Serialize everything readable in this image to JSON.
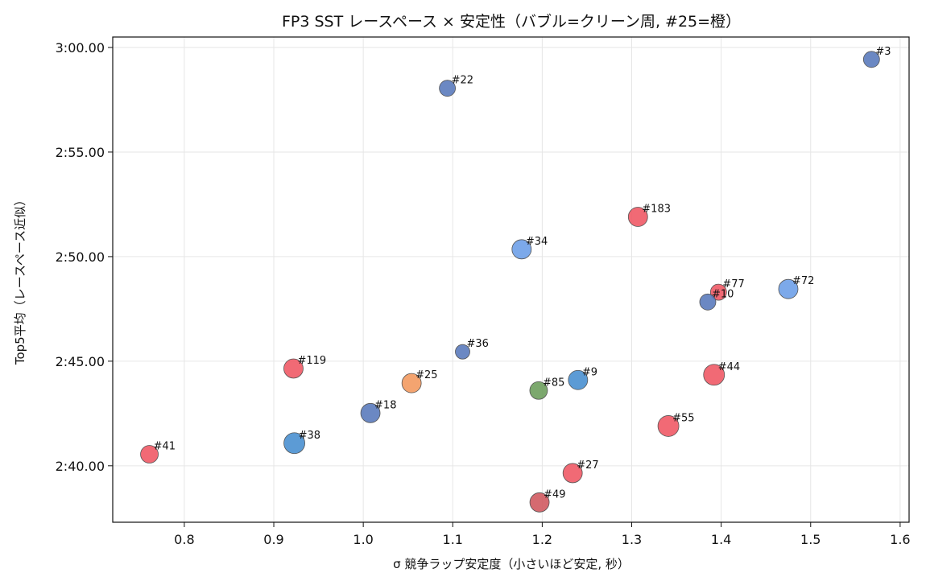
{
  "chart_data": {
    "type": "scatter",
    "title": "FP3 SST レースペース × 安定性（バブル=クリーン周, #25=橙）",
    "xlabel": "σ 競争ラップ安定度（小さいほど安定, 秒）",
    "ylabel": "Top5平均（レースペース近似）",
    "xlim": [
      0.72,
      1.61
    ],
    "ylim": [
      157.3,
      180.5
    ],
    "x_ticks": [
      0.8,
      0.9,
      1.0,
      1.1,
      1.2,
      1.3,
      1.4,
      1.5,
      1.6
    ],
    "x_tick_labels": [
      "0.8",
      "0.9",
      "1.0",
      "1.1",
      "1.2",
      "1.3",
      "1.4",
      "1.5",
      "1.6"
    ],
    "y_ticks": [
      160,
      165,
      170,
      175,
      180
    ],
    "y_tick_labels": [
      "2:40.00",
      "2:45.00",
      "2:50.00",
      "2:55.00",
      "3:00.00"
    ],
    "grid": true,
    "points": [
      {
        "label": "#3",
        "x": 1.568,
        "y": 179.43,
        "size": 10,
        "color": "#5b7bbd"
      },
      {
        "label": "#22",
        "x": 1.094,
        "y": 178.05,
        "size": 10,
        "color": "#5b7bbd"
      },
      {
        "label": "#183",
        "x": 1.307,
        "y": 171.9,
        "size": 12,
        "color": "#f05a66"
      },
      {
        "label": "#34",
        "x": 1.177,
        "y": 170.35,
        "size": 12,
        "color": "#6ea0e8"
      },
      {
        "label": "#72",
        "x": 1.475,
        "y": 168.45,
        "size": 12,
        "color": "#6ea0e8"
      },
      {
        "label": "#77",
        "x": 1.397,
        "y": 168.3,
        "size": 10,
        "color": "#f05a66"
      },
      {
        "label": "#10",
        "x": 1.385,
        "y": 167.83,
        "size": 10,
        "color": "#5b7bbd"
      },
      {
        "label": "#36",
        "x": 1.111,
        "y": 165.45,
        "size": 9,
        "color": "#5b7bbd"
      },
      {
        "label": "#119",
        "x": 0.922,
        "y": 164.65,
        "size": 12,
        "color": "#f05a66"
      },
      {
        "label": "#44",
        "x": 1.392,
        "y": 164.35,
        "size": 13,
        "color": "#f05a66"
      },
      {
        "label": "#9",
        "x": 1.24,
        "y": 164.1,
        "size": 12,
        "color": "#4a90d0"
      },
      {
        "label": "#25",
        "x": 1.054,
        "y": 163.95,
        "size": 12,
        "color": "#f39a60"
      },
      {
        "label": "#85",
        "x": 1.196,
        "y": 163.6,
        "size": 11,
        "color": "#6e9e5e"
      },
      {
        "label": "#18",
        "x": 1.008,
        "y": 162.52,
        "size": 12,
        "color": "#5b7bbd"
      },
      {
        "label": "#55",
        "x": 1.341,
        "y": 161.9,
        "size": 13,
        "color": "#f05a66"
      },
      {
        "label": "#38",
        "x": 0.923,
        "y": 161.08,
        "size": 13,
        "color": "#4a90d0"
      },
      {
        "label": "#41",
        "x": 0.761,
        "y": 160.55,
        "size": 11,
        "color": "#f05a66"
      },
      {
        "label": "#27",
        "x": 1.234,
        "y": 159.65,
        "size": 12,
        "color": "#f05a66"
      },
      {
        "label": "#49",
        "x": 1.197,
        "y": 158.25,
        "size": 12,
        "color": "#d05a60"
      }
    ]
  }
}
